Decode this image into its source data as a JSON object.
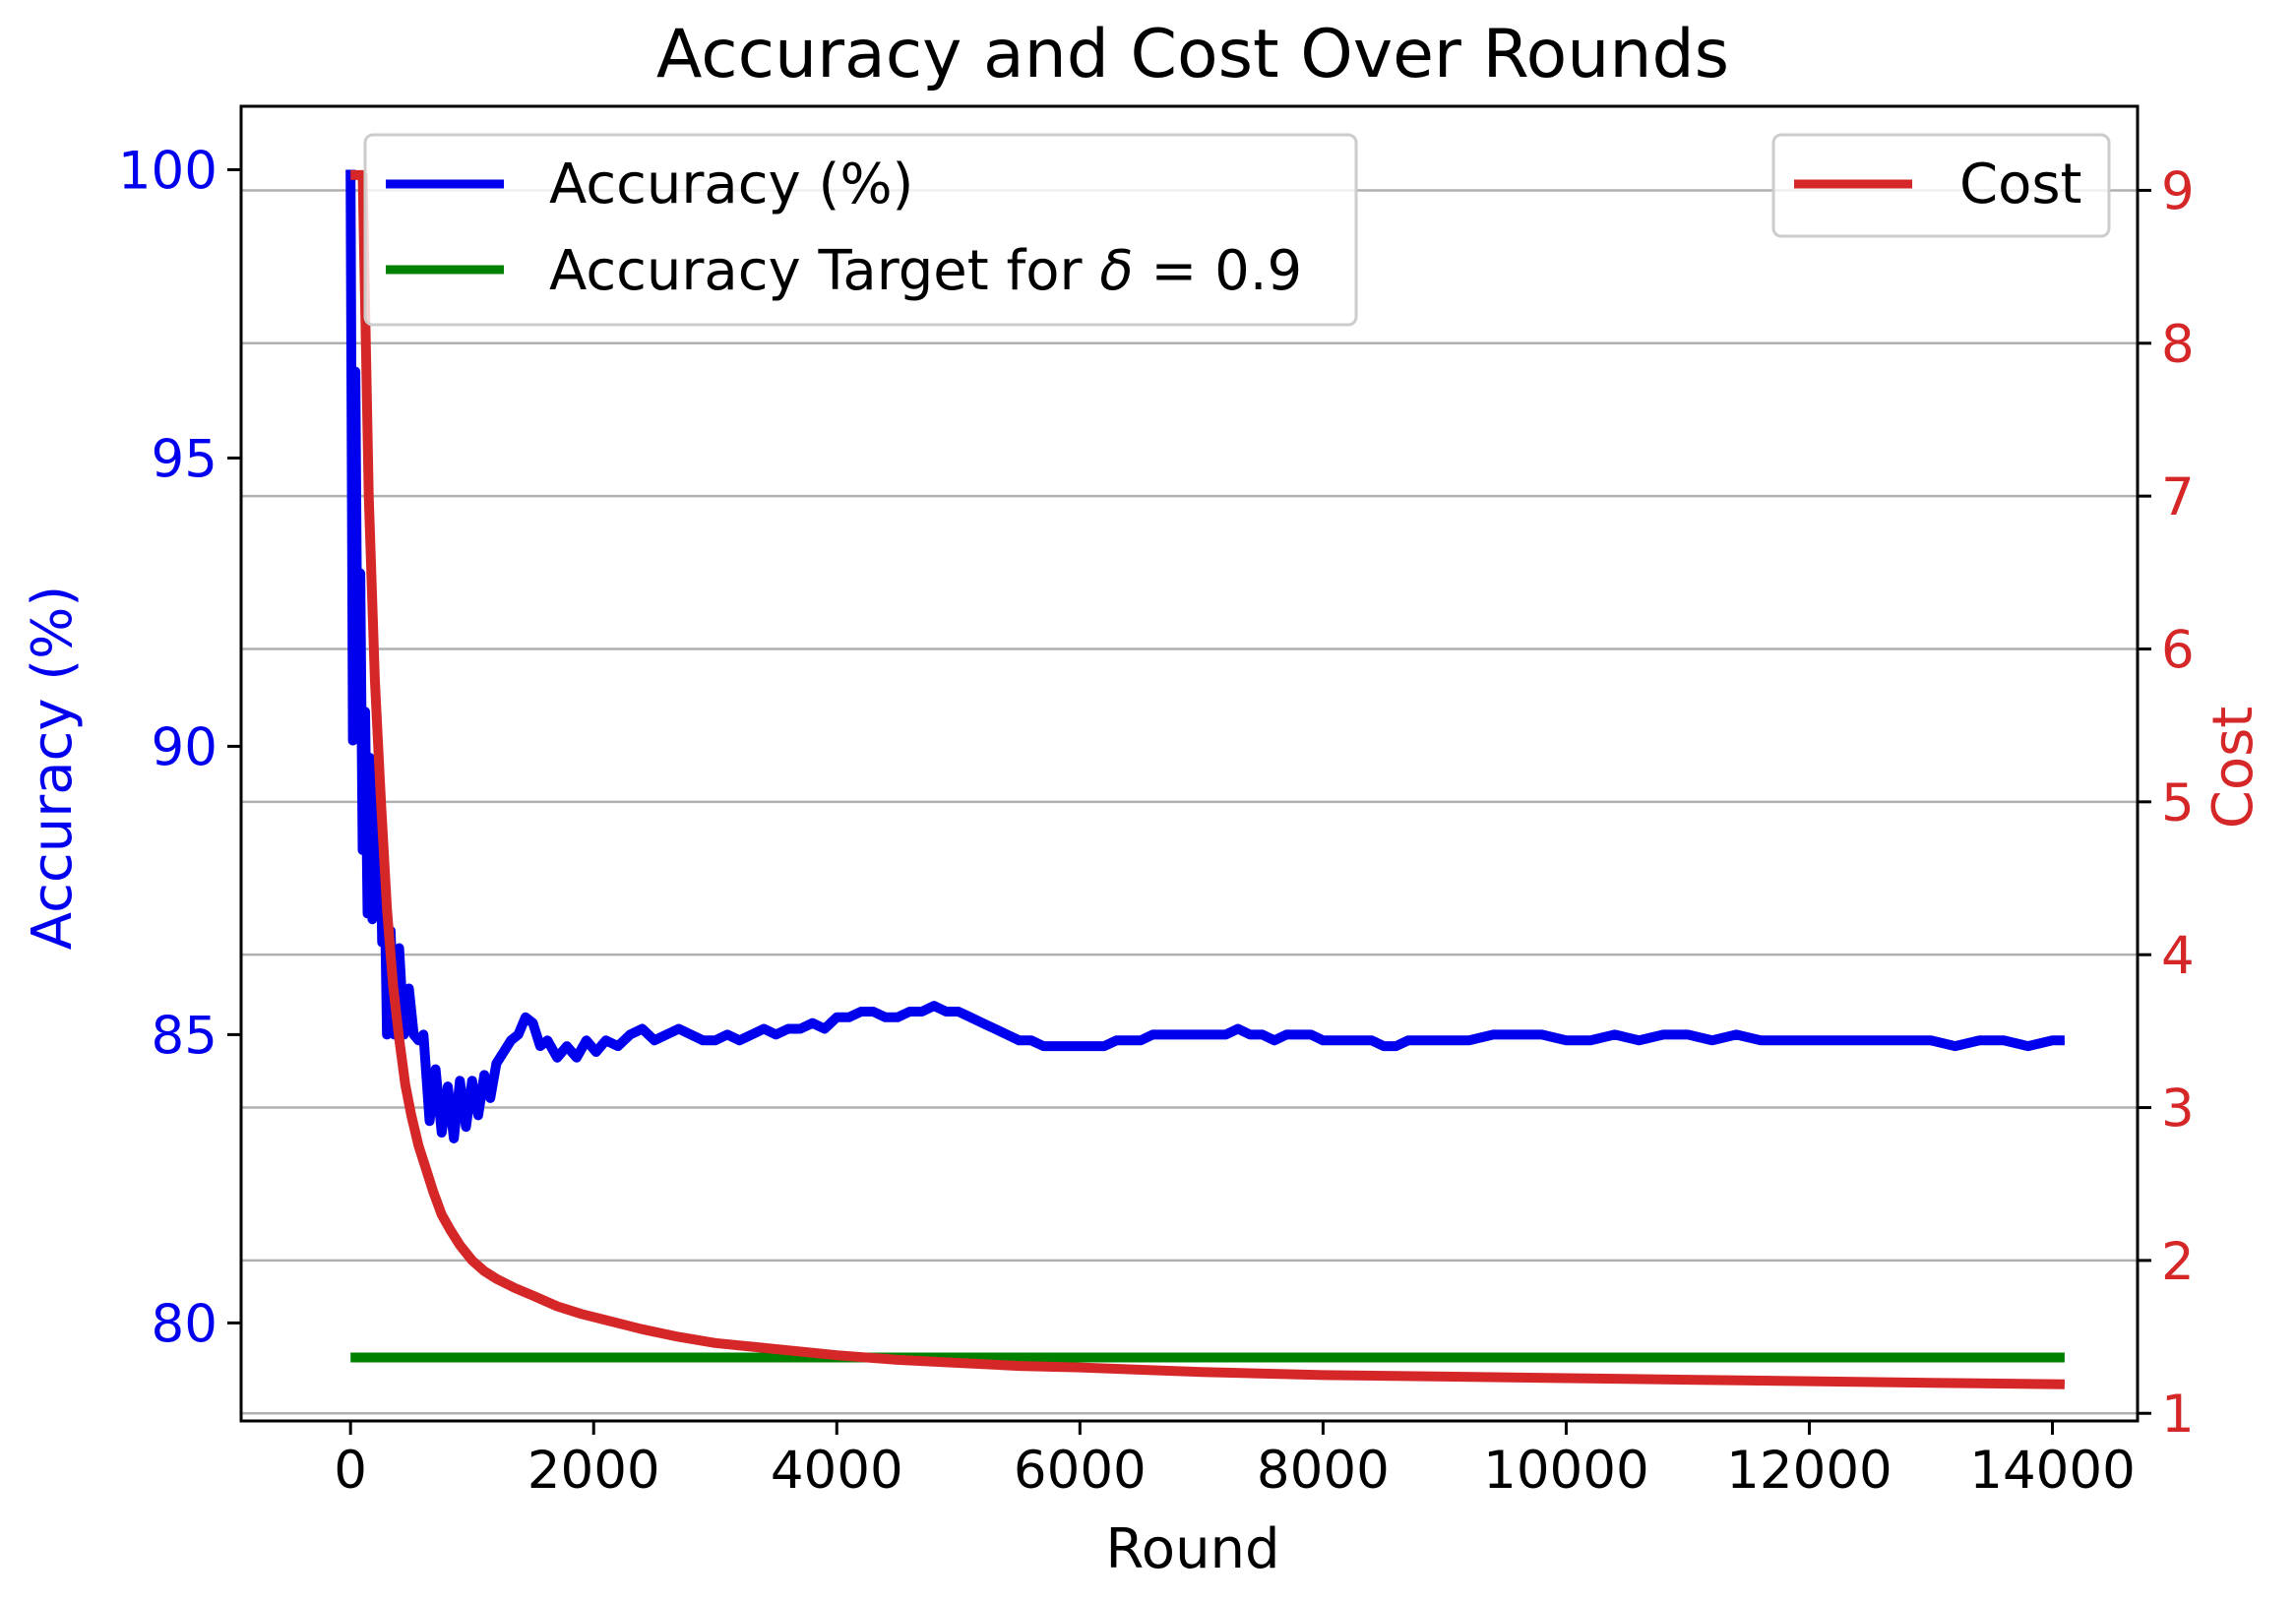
{
  "chart_data": {
    "type": "line",
    "title": "Accuracy and Cost Over Rounds",
    "xlabel": "Round",
    "ylabel_left": "Accuracy (%)",
    "ylabel_right": "Cost",
    "xlim": [
      -900,
      14700
    ],
    "ylim_left": [
      78.3,
      101.1
    ],
    "ylim_right": [
      0.95,
      9.55
    ],
    "x_ticks": [
      0,
      2000,
      4000,
      6000,
      8000,
      10000,
      12000,
      14000
    ],
    "y_left_ticks": [
      80,
      85,
      90,
      95,
      100
    ],
    "y_right_ticks": [
      1,
      2,
      3,
      4,
      5,
      6,
      7,
      8,
      9
    ],
    "grid": "horizontal lines at right-axis ticks",
    "colors": {
      "accuracy": "#0000ee",
      "target": "#008000",
      "cost": "#d62728",
      "left_axis": "#0000ee",
      "right_axis": "#d62728"
    },
    "legend_left": {
      "position": "top-left",
      "entries": [
        {
          "label": "Accuracy (%)",
          "series": "accuracy"
        },
        {
          "label_prefix": "Accuracy Target for ",
          "label_symbol": "δ",
          "label_suffix": " = 0.9",
          "series": "target"
        }
      ]
    },
    "legend_right": {
      "position": "top-right",
      "entries": [
        {
          "label": "Cost",
          "series": "cost"
        }
      ]
    },
    "series": [
      {
        "name": "Accuracy (%)",
        "key": "accuracy",
        "axis": "left",
        "x": [
          0,
          20,
          40,
          60,
          80,
          100,
          120,
          140,
          160,
          180,
          200,
          220,
          240,
          260,
          280,
          300,
          330,
          360,
          400,
          440,
          480,
          520,
          560,
          600,
          650,
          700,
          750,
          800,
          850,
          900,
          950,
          1000,
          1050,
          1100,
          1150,
          1200,
          1260,
          1320,
          1380,
          1440,
          1500,
          1560,
          1620,
          1700,
          1780,
          1860,
          1940,
          2020,
          2100,
          2200,
          2300,
          2400,
          2500,
          2600,
          2700,
          2800,
          2900,
          3000,
          3100,
          3200,
          3300,
          3400,
          3500,
          3600,
          3700,
          3800,
          3900,
          4000,
          4100,
          4200,
          4300,
          4400,
          4500,
          4600,
          4700,
          4800,
          4900,
          5000,
          5100,
          5200,
          5300,
          5400,
          5500,
          5600,
          5700,
          5800,
          5900,
          6000,
          6100,
          6200,
          6300,
          6400,
          6500,
          6600,
          6700,
          6800,
          6900,
          7000,
          7100,
          7200,
          7300,
          7400,
          7500,
          7600,
          7700,
          7800,
          7900,
          8000,
          8100,
          8200,
          8300,
          8400,
          8500,
          8600,
          8700,
          8800,
          8900,
          9000,
          9200,
          9400,
          9600,
          9800,
          10000,
          10200,
          10400,
          10600,
          10800,
          11000,
          11200,
          11400,
          11600,
          11800,
          12000,
          12200,
          12400,
          12600,
          12800,
          13000,
          13200,
          13400,
          13600,
          13800,
          14000,
          14100
        ],
        "values": [
          100,
          90.1,
          96.5,
          90.4,
          93.0,
          88.2,
          90.6,
          87.1,
          89.8,
          87.0,
          89.5,
          87.2,
          89.2,
          86.6,
          87.6,
          85.0,
          86.8,
          85.0,
          86.5,
          85.0,
          85.8,
          85.0,
          84.9,
          85.0,
          83.5,
          84.4,
          83.3,
          84.1,
          83.2,
          84.2,
          83.4,
          84.2,
          83.6,
          84.3,
          83.9,
          84.5,
          84.7,
          84.9,
          85.0,
          85.3,
          85.2,
          84.8,
          84.9,
          84.6,
          84.8,
          84.6,
          84.9,
          84.7,
          84.9,
          84.8,
          85.0,
          85.1,
          84.9,
          85.0,
          85.1,
          85.0,
          84.9,
          84.9,
          85.0,
          84.9,
          85.0,
          85.1,
          85.0,
          85.1,
          85.1,
          85.2,
          85.1,
          85.3,
          85.3,
          85.4,
          85.4,
          85.3,
          85.3,
          85.4,
          85.4,
          85.5,
          85.4,
          85.4,
          85.3,
          85.2,
          85.1,
          85.0,
          84.9,
          84.9,
          84.8,
          84.8,
          84.8,
          84.8,
          84.8,
          84.8,
          84.9,
          84.9,
          84.9,
          85.0,
          85.0,
          85.0,
          85.0,
          85.0,
          85.0,
          85.0,
          85.1,
          85.0,
          85.0,
          84.9,
          85.0,
          85.0,
          85.0,
          84.9,
          84.9,
          84.9,
          84.9,
          84.9,
          84.8,
          84.8,
          84.9,
          84.9,
          84.9,
          84.9,
          84.9,
          85.0,
          85.0,
          85.0,
          84.9,
          84.9,
          85.0,
          84.9,
          85.0,
          85.0,
          84.9,
          85.0,
          84.9,
          84.9,
          84.9,
          84.9,
          84.9,
          84.9,
          84.9,
          84.9,
          84.8,
          84.9,
          84.9,
          84.8,
          84.9,
          84.9
        ]
      },
      {
        "name": "Accuracy Target for δ = 0.9",
        "key": "target",
        "axis": "left",
        "x": [
          0,
          14100
        ],
        "values": [
          79.4,
          79.4
        ]
      },
      {
        "name": "Cost",
        "key": "cost",
        "axis": "right",
        "x": [
          0,
          60,
          100,
          150,
          200,
          250,
          300,
          350,
          400,
          450,
          500,
          560,
          620,
          680,
          750,
          820,
          900,
          1000,
          1100,
          1200,
          1350,
          1500,
          1700,
          1900,
          2100,
          2400,
          2700,
          3000,
          3500,
          4000,
          4500,
          5000,
          5500,
          6000,
          7000,
          8000,
          9000,
          10000,
          11000,
          12000,
          13000,
          14100
        ],
        "values": [
          9.1,
          9.1,
          9.1,
          7.0,
          5.8,
          5.0,
          4.3,
          3.8,
          3.45,
          3.15,
          2.95,
          2.75,
          2.6,
          2.45,
          2.3,
          2.2,
          2.1,
          2.0,
          1.93,
          1.88,
          1.82,
          1.77,
          1.7,
          1.65,
          1.61,
          1.55,
          1.5,
          1.46,
          1.42,
          1.38,
          1.35,
          1.33,
          1.31,
          1.3,
          1.27,
          1.25,
          1.24,
          1.23,
          1.22,
          1.21,
          1.2,
          1.19
        ]
      }
    ]
  }
}
